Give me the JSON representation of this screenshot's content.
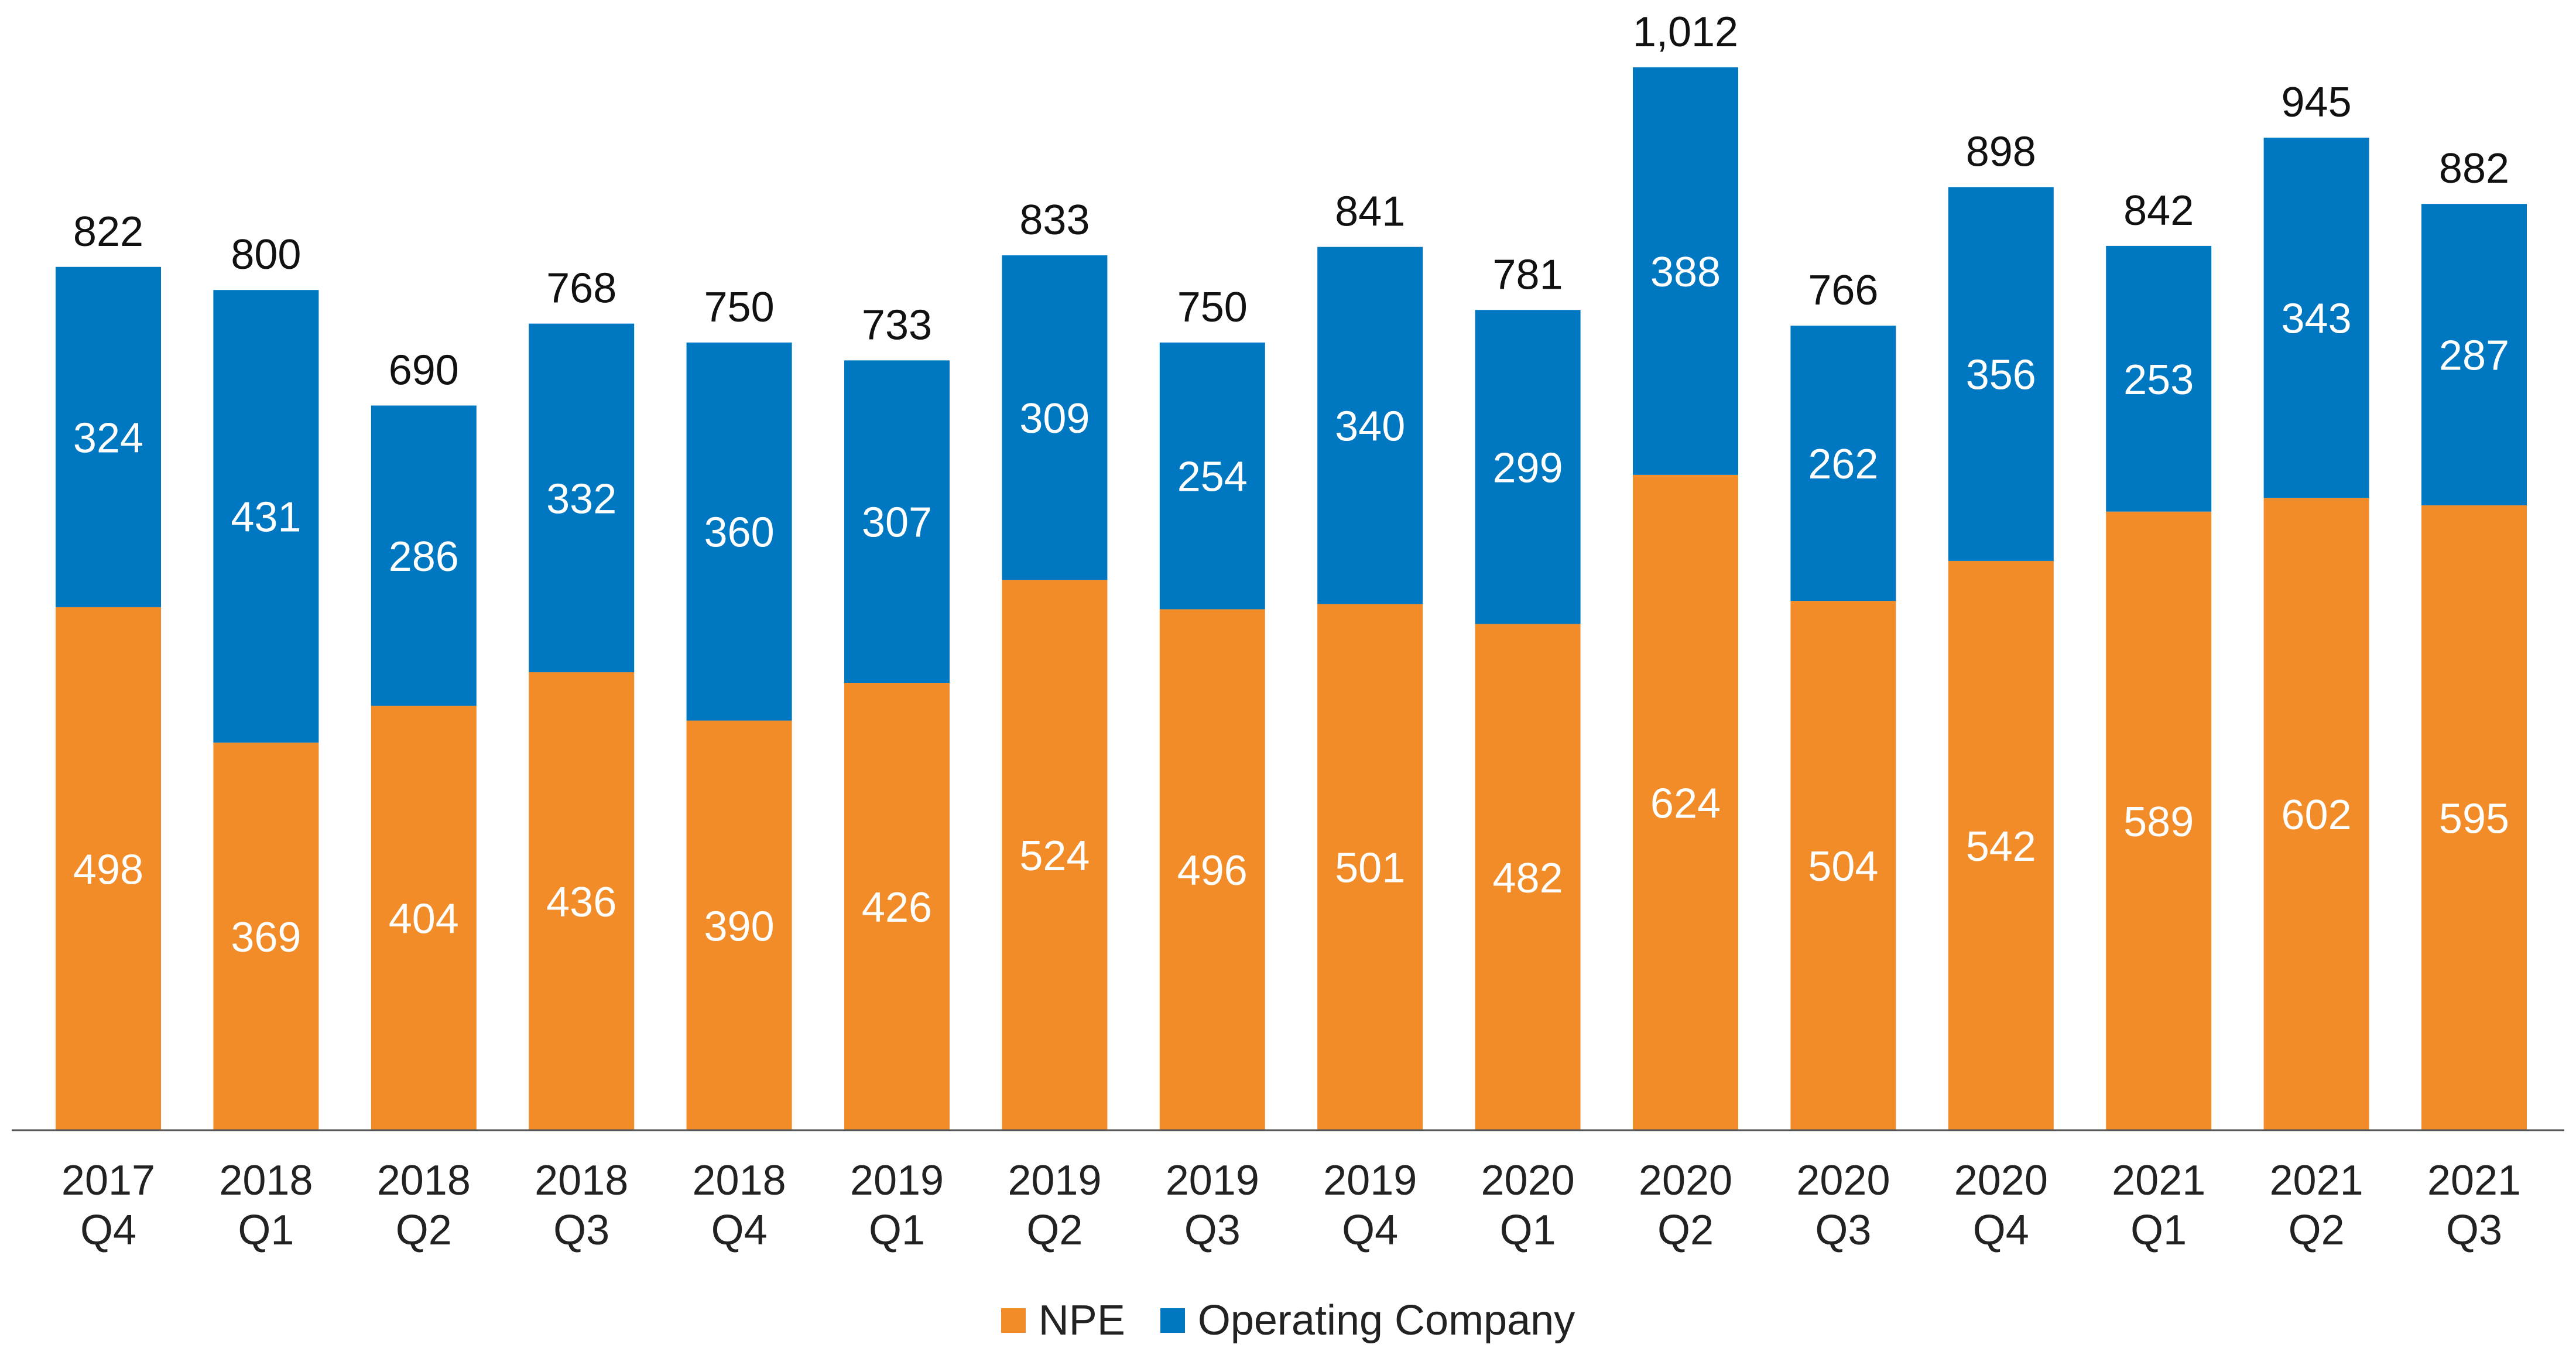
{
  "chart_data": {
    "type": "bar",
    "stacked": true,
    "title": "",
    "xlabel": "",
    "ylabel": "",
    "ylim": [
      0,
      1012
    ],
    "grid": false,
    "legend_position": "bottom-center",
    "categories": [
      [
        "2017",
        "Q4"
      ],
      [
        "2018",
        "Q1"
      ],
      [
        "2018",
        "Q2"
      ],
      [
        "2018",
        "Q3"
      ],
      [
        "2018",
        "Q4"
      ],
      [
        "2019",
        "Q1"
      ],
      [
        "2019",
        "Q2"
      ],
      [
        "2019",
        "Q3"
      ],
      [
        "2019",
        "Q4"
      ],
      [
        "2020",
        "Q1"
      ],
      [
        "2020",
        "Q2"
      ],
      [
        "2020",
        "Q3"
      ],
      [
        "2020",
        "Q4"
      ],
      [
        "2021",
        "Q1"
      ],
      [
        "2021",
        "Q2"
      ],
      [
        "2021",
        "Q3"
      ]
    ],
    "series": [
      {
        "name": "NPE",
        "color": "#F28C28",
        "values": [
          498,
          369,
          404,
          436,
          390,
          426,
          524,
          496,
          501,
          482,
          624,
          504,
          542,
          589,
          602,
          595
        ]
      },
      {
        "name": "Operating Company",
        "color": "#0078C1",
        "values": [
          324,
          431,
          286,
          332,
          360,
          307,
          309,
          254,
          340,
          299,
          388,
          262,
          356,
          253,
          343,
          287
        ]
      }
    ],
    "totals": [
      "822",
      "800",
      "690",
      "768",
      "750",
      "733",
      "833",
      "750",
      "841",
      "781",
      "1,012",
      "766",
      "898",
      "842",
      "945",
      "882"
    ]
  }
}
